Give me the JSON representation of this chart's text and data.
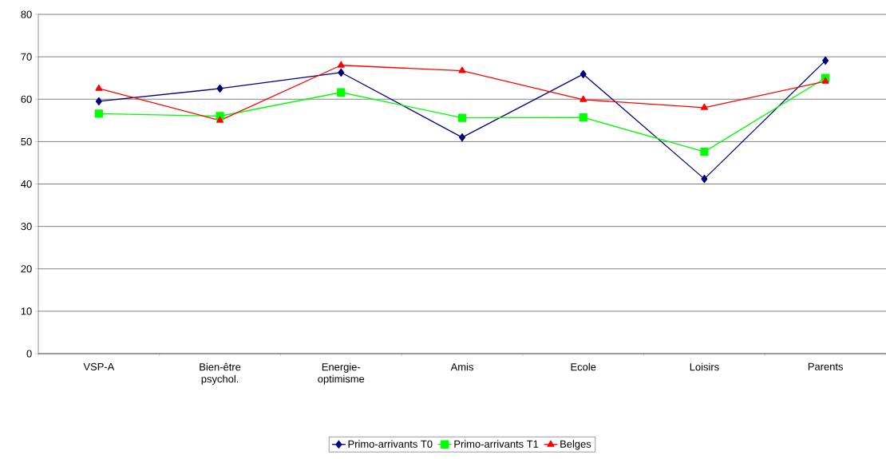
{
  "chart_data": {
    "type": "line",
    "categories": [
      "VSP-A",
      "Bien-être psychol.",
      "Energie-optimisme",
      "Amis",
      "Ecole",
      "Loisirs",
      "Parents"
    ],
    "series": [
      {
        "name": "Primo-arrivants T0",
        "color": "#000080",
        "marker": "diamond",
        "values": [
          59.5,
          62.5,
          66.3,
          51.0,
          65.9,
          41.2,
          69.1
        ]
      },
      {
        "name": "Primo-arrivants T1",
        "color": "#00ff00",
        "marker": "square",
        "values": [
          56.6,
          56.0,
          61.6,
          55.6,
          55.7,
          47.6,
          65.0
        ]
      },
      {
        "name": "Belges",
        "color": "#ff0000",
        "marker": "triangle",
        "values": [
          62.5,
          55.0,
          68.0,
          66.7,
          59.9,
          58.0,
          64.2
        ]
      }
    ],
    "ylim": [
      0,
      80
    ],
    "yticks": [
      0,
      10,
      20,
      30,
      40,
      50,
      60,
      70,
      80
    ],
    "grid": "y",
    "legend": "bottom",
    "line_style": "solid"
  }
}
